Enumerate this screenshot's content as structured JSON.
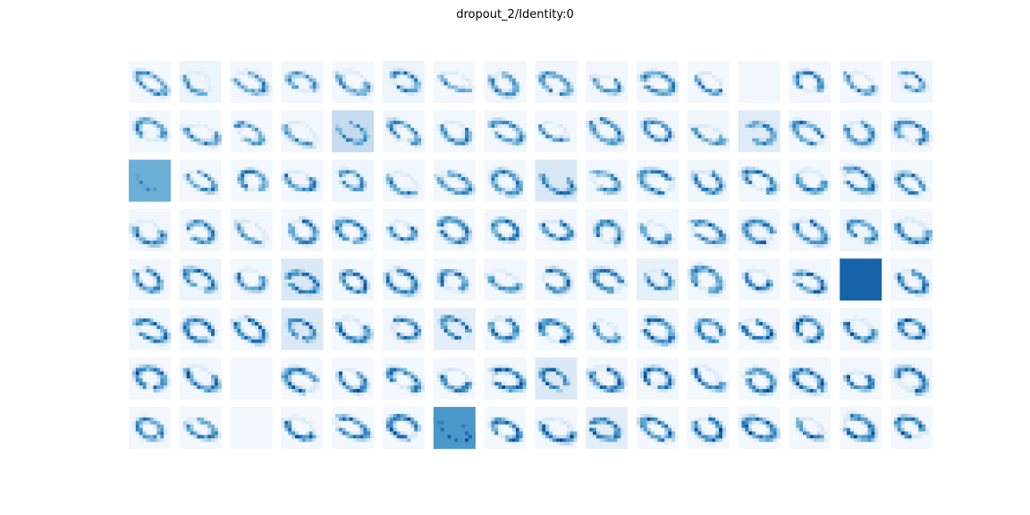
{
  "chart_data": {
    "type": "heatmap",
    "title": "dropout_2/Identity:0",
    "rows": 8,
    "cols": 16,
    "colormap": "Blues",
    "axis": "off",
    "tile_background_levels": [
      [
        0.02,
        0.05,
        0.03,
        0.03,
        0.02,
        0.05,
        0.02,
        0.03,
        0.04,
        0.03,
        0.03,
        0.02,
        0.03,
        0.03,
        0.02,
        0.04
      ],
      [
        0.03,
        0.02,
        0.02,
        0.03,
        0.25,
        0.03,
        0.03,
        0.03,
        0.02,
        0.03,
        0.03,
        0.04,
        0.12,
        0.03,
        0.02,
        0.03
      ],
      [
        0.5,
        0.03,
        0.02,
        0.03,
        0.05,
        0.03,
        0.03,
        0.02,
        0.15,
        0.03,
        0.02,
        0.04,
        0.03,
        0.02,
        0.04,
        0.03
      ],
      [
        0.03,
        0.02,
        0.03,
        0.02,
        0.02,
        0.02,
        0.02,
        0.03,
        0.03,
        0.03,
        0.03,
        0.02,
        0.03,
        0.02,
        0.05,
        0.03
      ],
      [
        0.03,
        0.05,
        0.02,
        0.14,
        0.03,
        0.02,
        0.03,
        0.03,
        0.02,
        0.03,
        0.08,
        0.02,
        0.02,
        0.03,
        0.8,
        0.03
      ],
      [
        0.04,
        0.02,
        0.02,
        0.14,
        0.02,
        0.03,
        0.1,
        0.02,
        0.02,
        0.03,
        0.02,
        0.03,
        0.02,
        0.02,
        0.03,
        0.03
      ],
      [
        0.02,
        0.03,
        0.03,
        0.02,
        0.02,
        0.02,
        0.02,
        0.03,
        0.14,
        0.02,
        0.03,
        0.02,
        0.02,
        0.03,
        0.03,
        0.03
      ],
      [
        0.03,
        0.02,
        0.03,
        0.02,
        0.02,
        0.02,
        0.6,
        0.02,
        0.03,
        0.1,
        0.02,
        0.03,
        0.02,
        0.02,
        0.02,
        0.02
      ]
    ],
    "blank_tiles": [
      [
        0,
        12
      ],
      [
        6,
        2
      ],
      [
        7,
        2
      ]
    ]
  }
}
